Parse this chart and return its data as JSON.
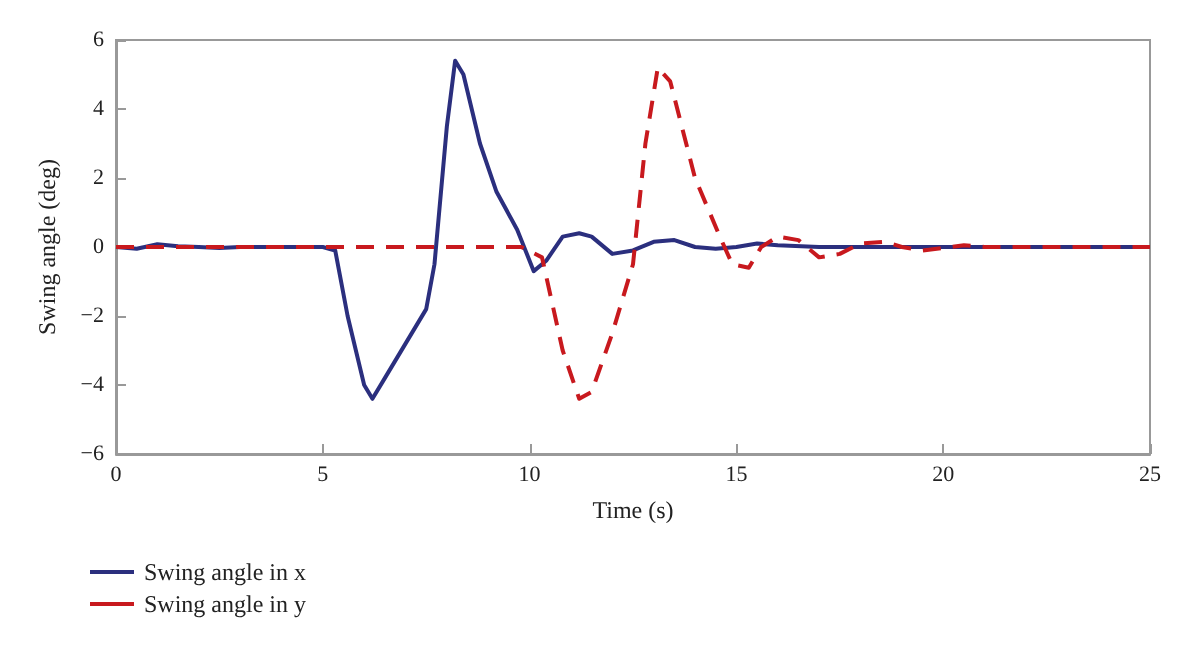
{
  "chart_data": {
    "type": "line",
    "xlabel": "Time (s)",
    "ylabel": "Swing angle (deg)",
    "xlim": [
      0,
      25
    ],
    "xticks": [
      0,
      5,
      10,
      15,
      20,
      25
    ],
    "ylim": [
      -6,
      6
    ],
    "yticks": [
      -6,
      -4,
      -2,
      0,
      2,
      4,
      6
    ],
    "grid": false,
    "legend": "bottom left",
    "marker": "none",
    "series": [
      {
        "name": "Swing angle in x",
        "color": "#2b2f7e",
        "line_style": "solid",
        "x": [
          0,
          0.5,
          1,
          1.5,
          2,
          2.5,
          3,
          4,
          5,
          5.3,
          5.6,
          6,
          6.2,
          6.5,
          7,
          7.5,
          7.7,
          8,
          8.2,
          8.4,
          8.8,
          9.2,
          9.7,
          10.1,
          10.4,
          10.8,
          11.2,
          11.5,
          12,
          12.5,
          13,
          13.5,
          14,
          14.5,
          15,
          15.5,
          16,
          17,
          25
        ],
        "values": [
          0,
          -0.05,
          0.08,
          0.02,
          0,
          -0.03,
          0,
          0,
          0,
          -0.1,
          -2,
          -4,
          -4.4,
          -3.8,
          -2.8,
          -1.8,
          -0.5,
          3.5,
          5.4,
          5,
          3,
          1.6,
          0.5,
          -0.7,
          -0.4,
          0.3,
          0.4,
          0.3,
          -0.2,
          -0.1,
          0.15,
          0.2,
          0,
          -0.05,
          0,
          0.1,
          0.05,
          0,
          0
        ]
      },
      {
        "name": "Swing angle in y",
        "color": "#c8191e",
        "line_style": "dashed",
        "x": [
          0,
          5,
          9.8,
          10.3,
          10.8,
          11.2,
          11.5,
          12,
          12.5,
          12.8,
          13.1,
          13.4,
          14,
          14.6,
          14.9,
          15.3,
          15.6,
          16,
          16.5,
          17,
          17.5,
          18,
          18.6,
          19,
          19.5,
          20.5,
          21,
          25
        ],
        "values": [
          0,
          0,
          0,
          -0.3,
          -3,
          -4.4,
          -4.2,
          -2.5,
          -0.5,
          3,
          5.2,
          4.8,
          2,
          0.3,
          -0.5,
          -0.6,
          0,
          0.3,
          0.2,
          -0.3,
          -0.2,
          0.1,
          0.15,
          0,
          -0.1,
          0.05,
          0,
          0
        ]
      }
    ]
  }
}
